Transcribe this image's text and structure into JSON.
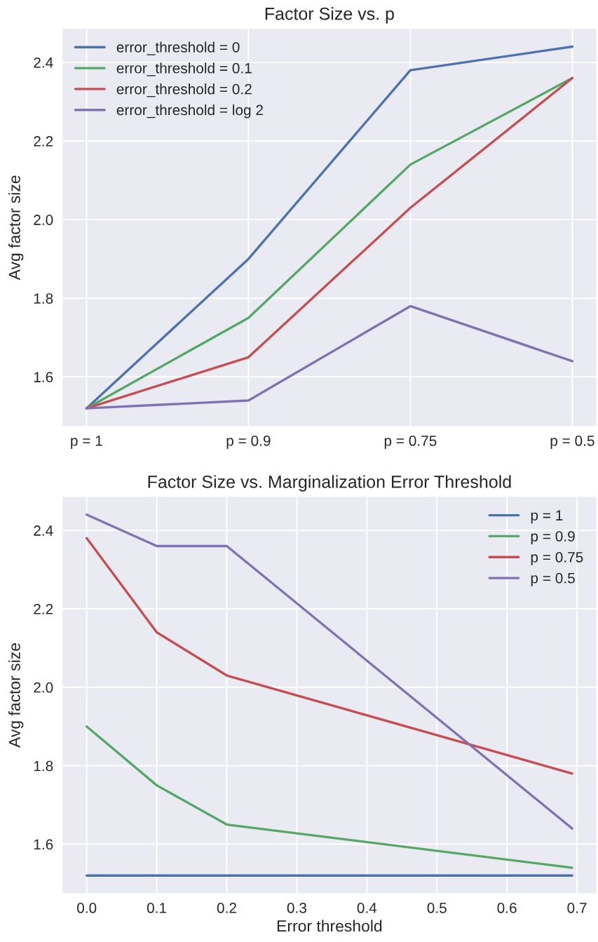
{
  "chart_data": [
    {
      "type": "line",
      "title": "Factor Size vs. p",
      "ylabel": "Avg factor size",
      "categories": [
        "p = 1",
        "p = 0.9",
        "p = 0.75",
        "p = 0.5"
      ],
      "series": [
        {
          "name": "error_threshold = 0",
          "color": "#4c72b0",
          "values": [
            1.52,
            1.9,
            2.38,
            2.44
          ]
        },
        {
          "name": "error_threshold = 0.1",
          "color": "#55a868",
          "values": [
            1.52,
            1.75,
            2.14,
            2.36
          ]
        },
        {
          "name": "error_threshold = 0.2",
          "color": "#c44e52",
          "values": [
            1.52,
            1.65,
            2.03,
            2.36
          ]
        },
        {
          "name": "error_threshold = log 2",
          "color": "#8172b2",
          "values": [
            1.52,
            1.54,
            1.78,
            1.64
          ]
        }
      ],
      "ylim": [
        1.474,
        2.486
      ],
      "yticks": [
        1.6,
        1.8,
        {
          "value": 2,
          "label": "2.0"
        },
        2.2,
        2.4
      ],
      "grid": true,
      "legend": "top left"
    },
    {
      "type": "line",
      "title": "Factor Size vs. Marginalization Error Threshold",
      "xlabel": "Error threshold",
      "ylabel": "Avg factor size",
      "x": [
        0,
        0.1,
        0.2,
        0.693
      ],
      "series": [
        {
          "name": "p = 1",
          "color": "#4c72b0",
          "values": [
            1.52,
            1.52,
            1.52,
            1.52
          ]
        },
        {
          "name": "p = 0.9",
          "color": "#55a868",
          "values": [
            1.9,
            1.75,
            1.65,
            1.54
          ]
        },
        {
          "name": "p = 0.75",
          "color": "#c44e52",
          "values": [
            2.38,
            2.14,
            2.03,
            1.78
          ]
        },
        {
          "name": "p = 0.5",
          "color": "#8172b2",
          "values": [
            2.44,
            2.36,
            2.36,
            1.64
          ]
        }
      ],
      "xlim": [
        -0.035,
        0.728
      ],
      "xticks": [
        {
          "value": 0,
          "label": "0.0"
        },
        0.1,
        0.2,
        0.3,
        0.4,
        0.5,
        0.6,
        0.7
      ],
      "ylim": [
        1.474,
        2.486
      ],
      "yticks": [
        1.6,
        1.8,
        {
          "value": 2,
          "label": "2.0"
        },
        2.2,
        2.4
      ],
      "grid": true,
      "legend": "top right"
    }
  ]
}
